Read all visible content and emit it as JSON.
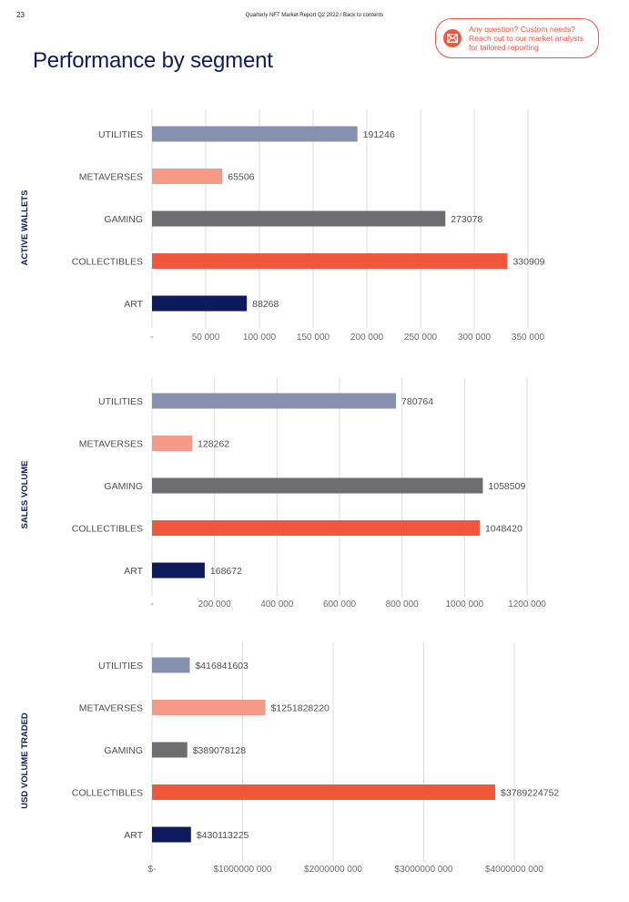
{
  "header": {
    "page_number": "23",
    "report_title": "Quarterly NFT Market Report Q2 2022",
    "separator": " / ",
    "back_link": "Back to contents"
  },
  "contact": {
    "icon": "mail-icon",
    "lines": [
      "Any question? Custom needs?",
      "Reach out to our market analysts",
      "for tailored reporting"
    ]
  },
  "page_title": "Performance by segment",
  "colors": {
    "utilities": "#8490ad",
    "metaverses": "#f69a88",
    "gaming": "#6d6d72",
    "collectibles": "#f0573b",
    "art": "#0d1b5c",
    "accent": "#f0573b",
    "title": "#0d1b5c",
    "grid": "#dcdcdc"
  },
  "chart_data": [
    {
      "type": "bar",
      "orientation": "horizontal",
      "title": "ACTIVE WALLETS",
      "ylabel": "ACTIVE WALLETS",
      "categories": [
        "UTILITIES",
        "METAVERSES",
        "GAMING",
        "COLLECTIBLES",
        "ART"
      ],
      "values": [
        191246,
        65506,
        273078,
        330909,
        88268
      ],
      "value_labels": [
        "191246",
        "65506",
        "273078",
        "330909",
        "88268"
      ],
      "xlim": [
        0,
        350000
      ],
      "ticks": [
        0,
        50000,
        100000,
        150000,
        200000,
        250000,
        300000,
        350000
      ],
      "tick_labels": [
        "-",
        "50 000",
        "100 000",
        "150 000",
        "200 000",
        "250 000",
        "300 000",
        "350 000"
      ],
      "grid": true
    },
    {
      "type": "bar",
      "orientation": "horizontal",
      "title": "SALES VOLUME",
      "ylabel": "SALES VOLUME",
      "categories": [
        "UTILITIES",
        "METAVERSES",
        "GAMING",
        "COLLECTIBLES",
        "ART"
      ],
      "values": [
        780764,
        128262,
        1058509,
        1048420,
        168672
      ],
      "value_labels": [
        "780764",
        "128262",
        "1058509",
        "1048420",
        "168672"
      ],
      "xlim": [
        0,
        1200000
      ],
      "ticks": [
        0,
        200000,
        400000,
        600000,
        800000,
        1000000,
        1200000
      ],
      "tick_labels": [
        "-",
        "200 000",
        "400 000",
        "600 000",
        "800 000",
        "1000 000",
        "1200 000"
      ],
      "grid": true
    },
    {
      "type": "bar",
      "orientation": "horizontal",
      "title": "USD VOLUME TRADED",
      "ylabel": "USD VOLUME TRADED",
      "categories": [
        "UTILITIES",
        "METAVERSES",
        "GAMING",
        "COLLECTIBLES",
        "ART"
      ],
      "values": [
        416841603,
        1251828220,
        389078128,
        3789224752,
        430113225
      ],
      "value_labels": [
        "$416841603",
        "$1251828220",
        "$389078128",
        "$3789224752",
        "$430113225"
      ],
      "xlim": [
        0,
        4000000000
      ],
      "ticks": [
        0,
        1000000000,
        2000000000,
        3000000000,
        4000000000
      ],
      "tick_labels": [
        "$-",
        "$1000000 000",
        "$2000000 000",
        "$3000000 000",
        "$4000000 000"
      ],
      "grid": true
    }
  ]
}
